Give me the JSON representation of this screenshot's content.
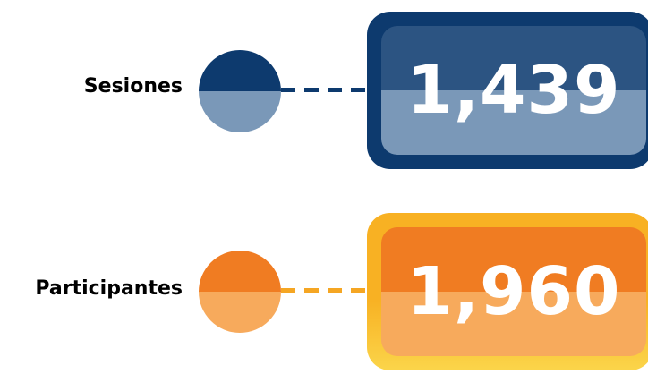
{
  "stats": [
    {
      "label": "Sesiones",
      "value": "1,439",
      "colors": {
        "circle_top": "#0d3a6e",
        "circle_bottom": "#7a98b8",
        "dash": "#0d3a6e",
        "box_outer": "#0d3a6e",
        "box_top": "#2c5482",
        "box_bottom": "#7a98b8"
      }
    },
    {
      "label": "Participantes",
      "value": "1,960",
      "colors": {
        "circle_top": "#f07c22",
        "circle_bottom": "#f7aa5c",
        "dash": "#f5a623",
        "box_outer": "#f8b123",
        "box_outer_bottom": "#fbd54a",
        "box_top": "#f07c22",
        "box_bottom": "#f7aa5c"
      }
    }
  ]
}
